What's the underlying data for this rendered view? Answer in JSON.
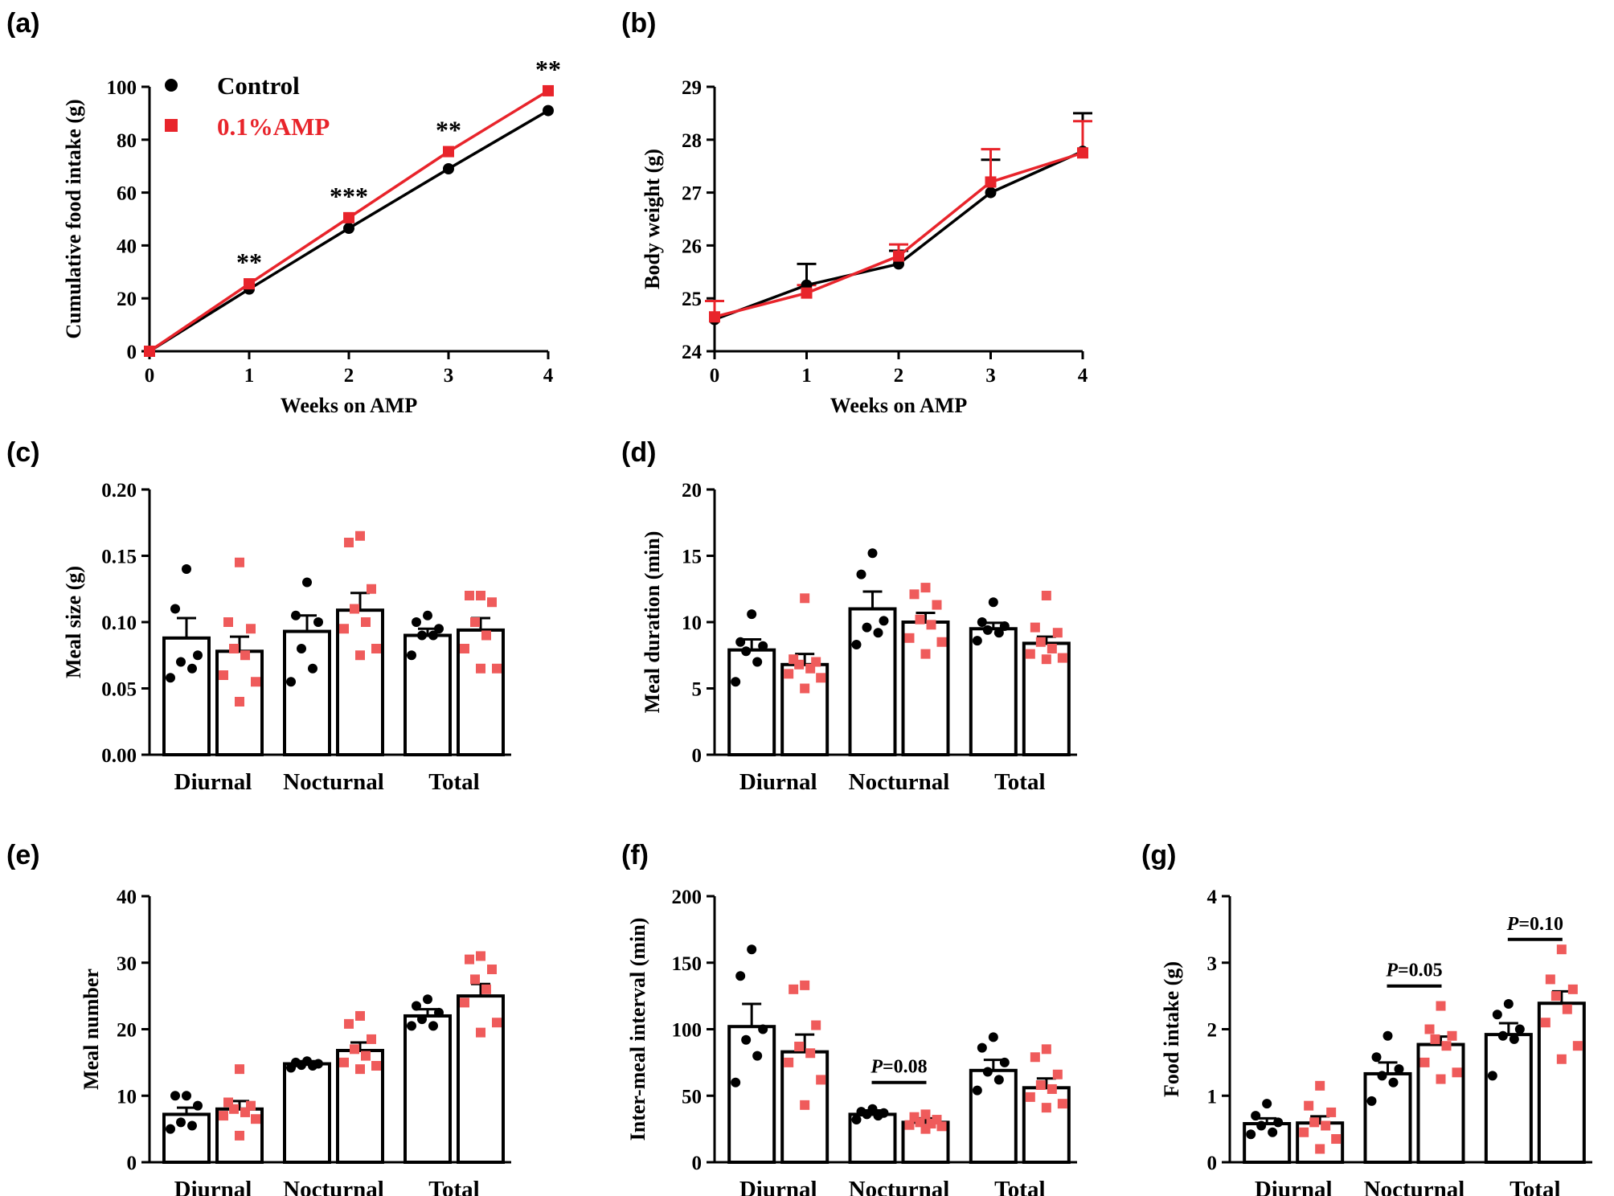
{
  "colors": {
    "control": "#000000",
    "amp": "#e8242b",
    "amp_dots": "#ef5b5b"
  },
  "legend": {
    "control": "Control",
    "amp": "0.1%AMP"
  },
  "chart_data": [
    {
      "panel": "(a)",
      "type": "line",
      "xlabel": "Weeks on AMP",
      "ylabel": "Cumulative food intake (g)",
      "x": [
        0,
        1,
        2,
        3,
        4
      ],
      "xlim": [
        0,
        4
      ],
      "ylim": [
        0,
        100
      ],
      "yticks": [
        "0",
        "20",
        "40",
        "60",
        "80",
        "100"
      ],
      "xticks": [
        "0",
        "1",
        "2",
        "3",
        "4"
      ],
      "series": [
        {
          "name": "Control",
          "values": [
            0,
            23.5,
            46.5,
            69,
            91
          ]
        },
        {
          "name": "0.1%AMP",
          "values": [
            0,
            25.5,
            50.5,
            75.5,
            98.5
          ]
        }
      ],
      "annotations": [
        {
          "x": 1,
          "text": "**"
        },
        {
          "x": 2,
          "text": "***"
        },
        {
          "x": 3,
          "text": "**"
        },
        {
          "x": 4,
          "text": "**"
        }
      ]
    },
    {
      "panel": "(b)",
      "type": "line",
      "xlabel": "Weeks on AMP",
      "ylabel": "Body weight (g)",
      "x": [
        0,
        1,
        2,
        3,
        4
      ],
      "xlim": [
        0,
        4
      ],
      "ylim": [
        24,
        29
      ],
      "yticks": [
        "24",
        "25",
        "26",
        "27",
        "28",
        "29"
      ],
      "xticks": [
        "0",
        "1",
        "2",
        "3",
        "4"
      ],
      "series": [
        {
          "name": "Control",
          "values": [
            24.6,
            25.25,
            25.65,
            27.0,
            27.78
          ],
          "errors": [
            0.35,
            0.4,
            0.25,
            0.62,
            0.72
          ]
        },
        {
          "name": "0.1%AMP",
          "values": [
            24.65,
            25.1,
            25.8,
            27.2,
            27.75
          ],
          "errors": [
            0.3,
            0.15,
            0.22,
            0.62,
            0.6
          ]
        }
      ]
    },
    {
      "panel": "(c)",
      "type": "bar",
      "ylabel": "Meal size (g)",
      "categories": [
        "Diurnal",
        "Nocturnal",
        "Total"
      ],
      "ylim": [
        0,
        0.2
      ],
      "yticks": [
        "0.00",
        "0.05",
        "0.10",
        "0.15",
        "0.20"
      ],
      "series": [
        {
          "name": "Control",
          "values": [
            0.088,
            0.093,
            0.09
          ],
          "errors": [
            0.015,
            0.012,
            0.005
          ],
          "points": [
            [
              0.14,
              0.11,
              0.075,
              0.07,
              0.065,
              0.058
            ],
            [
              0.13,
              0.105,
              0.1,
              0.08,
              0.065,
              0.055
            ],
            [
              0.105,
              0.1,
              0.095,
              0.09,
              0.09,
              0.075
            ]
          ]
        },
        {
          "name": "0.1%AMP",
          "values": [
            0.078,
            0.109,
            0.094
          ],
          "errors": [
            0.011,
            0.013,
            0.009
          ],
          "points": [
            [
              0.145,
              0.1,
              0.095,
              0.08,
              0.075,
              0.06,
              0.055,
              0.04
            ],
            [
              0.165,
              0.16,
              0.125,
              0.11,
              0.1,
              0.095,
              0.08,
              0.075
            ],
            [
              0.12,
              0.12,
              0.115,
              0.1,
              0.09,
              0.08,
              0.065,
              0.065
            ]
          ]
        }
      ]
    },
    {
      "panel": "(d)",
      "type": "bar",
      "ylabel": "Meal duration (min)",
      "categories": [
        "Diurnal",
        "Nocturnal",
        "Total"
      ],
      "ylim": [
        0,
        20
      ],
      "yticks": [
        "0",
        "5",
        "10",
        "15",
        "20"
      ],
      "series": [
        {
          "name": "Control",
          "values": [
            7.9,
            11.0,
            9.5
          ],
          "errors": [
            0.8,
            1.3,
            0.45
          ],
          "points": [
            [
              10.6,
              8.5,
              8.2,
              7.8,
              7.0,
              5.5
            ],
            [
              15.2,
              13.6,
              10.1,
              9.6,
              9.2,
              8.3
            ],
            [
              11.5,
              10.0,
              9.7,
              9.4,
              9.2,
              8.6
            ]
          ]
        },
        {
          "name": "0.1%AMP",
          "values": [
            6.8,
            10.0,
            8.4
          ],
          "errors": [
            0.8,
            0.7,
            0.5
          ],
          "points": [
            [
              11.8,
              7.2,
              7.0,
              6.8,
              6.5,
              6.1,
              5.8,
              5.0
            ],
            [
              12.6,
              12.1,
              11.3,
              10.2,
              9.8,
              8.8,
              8.5,
              7.6
            ],
            [
              12.0,
              9.6,
              9.2,
              8.5,
              8.0,
              7.6,
              7.3,
              7.2
            ]
          ]
        }
      ]
    },
    {
      "panel": "(e)",
      "type": "bar",
      "ylabel": "Meal number",
      "categories": [
        "Diurnal",
        "Nocturnal",
        "Total"
      ],
      "ylim": [
        0,
        40
      ],
      "yticks": [
        "0",
        "10",
        "20",
        "30",
        "40"
      ],
      "series": [
        {
          "name": "Control",
          "values": [
            7.2,
            14.8,
            22.0
          ],
          "errors": [
            1.0,
            0.4,
            1.0
          ],
          "points": [
            [
              10.0,
              10.0,
              8.5,
              6.0,
              5.5,
              5.0
            ],
            [
              15.2,
              15.0,
              14.8,
              14.6,
              14.5,
              14.2
            ],
            [
              24.5,
              23.5,
              22.5,
              21.5,
              20.5,
              20.5
            ]
          ]
        },
        {
          "name": "0.1%AMP",
          "values": [
            8.0,
            16.8,
            25.0
          ],
          "errors": [
            1.2,
            1.2,
            1.8
          ],
          "points": [
            [
              14.0,
              9.0,
              8.5,
              8.0,
              7.5,
              7.0,
              6.5,
              4.0
            ],
            [
              22.0,
              20.8,
              18.5,
              17.0,
              16.0,
              15.0,
              14.5,
              14.0
            ],
            [
              31.0,
              30.5,
              29.0,
              27.5,
              26.0,
              24.0,
              21.0,
              19.5
            ]
          ]
        }
      ]
    },
    {
      "panel": "(f)",
      "type": "bar",
      "ylabel": "Inter-meal interval (min)",
      "categories": [
        "Diurnal",
        "Nocturnal",
        "Total"
      ],
      "ylim": [
        0,
        200
      ],
      "yticks": [
        "0",
        "50",
        "100",
        "150",
        "200"
      ],
      "series": [
        {
          "name": "Control",
          "values": [
            102,
            36,
            69
          ],
          "errors": [
            17,
            3,
            8
          ],
          "points": [
            [
              160,
              140,
              100,
              92,
              80,
              60
            ],
            [
              40,
              38,
              37,
              36,
              35,
              32
            ],
            [
              94,
              86,
              75,
              68,
              62,
              54
            ]
          ]
        },
        {
          "name": "0.1%AMP",
          "values": [
            83,
            30,
            56
          ],
          "errors": [
            13,
            3,
            7
          ],
          "points": [
            [
              133,
              130,
              103,
              87,
              82,
              75,
              62,
              43
            ],
            [
              36,
              34,
              32,
              30,
              29,
              28,
              27,
              25
            ],
            [
              85,
              79,
              66,
              58,
              55,
              49,
              44,
              41
            ]
          ]
        }
      ],
      "annotations": [
        {
          "category": "Nocturnal",
          "text": "=0.08",
          "prefix": "P",
          "y": 60
        }
      ]
    },
    {
      "panel": "(g)",
      "type": "bar",
      "ylabel": "Food intake (g)",
      "categories": [
        "Diurnal",
        "Nocturnal",
        "Total"
      ],
      "ylim": [
        0,
        4
      ],
      "yticks": [
        "0",
        "1",
        "2",
        "3",
        "4"
      ],
      "series": [
        {
          "name": "Control",
          "values": [
            0.58,
            1.33,
            1.92
          ],
          "errors": [
            0.08,
            0.17,
            0.17
          ],
          "points": [
            [
              0.88,
              0.7,
              0.6,
              0.55,
              0.45,
              0.42
            ],
            [
              1.9,
              1.58,
              1.4,
              1.3,
              1.2,
              0.92
            ],
            [
              2.38,
              2.22,
              2.0,
              1.9,
              1.85,
              1.3
            ]
          ]
        },
        {
          "name": "0.1%AMP",
          "values": [
            0.59,
            1.77,
            2.39
          ],
          "errors": [
            0.1,
            0.12,
            0.18
          ],
          "points": [
            [
              1.15,
              0.85,
              0.75,
              0.6,
              0.55,
              0.45,
              0.35,
              0.2
            ],
            [
              2.35,
              2.0,
              1.9,
              1.85,
              1.75,
              1.5,
              1.35,
              1.25
            ],
            [
              3.2,
              2.75,
              2.6,
              2.5,
              2.3,
              2.1,
              1.75,
              1.55
            ]
          ]
        }
      ],
      "annotations": [
        {
          "category": "Nocturnal",
          "text": "=0.05",
          "prefix": "P",
          "y": 2.65
        },
        {
          "category": "Total",
          "text": "=0.10",
          "prefix": "P",
          "y": 3.35
        }
      ]
    }
  ]
}
